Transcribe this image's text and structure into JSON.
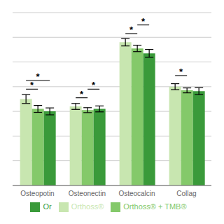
{
  "chart_data": {
    "type": "bar",
    "categories": [
      "Osteopotin",
      "Osteonectin",
      "Osteocalcin",
      "Collag"
    ],
    "series": [
      {
        "name": "Orthoss®",
        "color": "#c8e6b0",
        "values": [
          3.5,
          3.2,
          5.8,
          4.0
        ],
        "errors": [
          0.18,
          0.12,
          0.15,
          0.12
        ]
      },
      {
        "name": "Orthoss® + TMB®",
        "color": "#84c96a",
        "values": [
          3.1,
          3.05,
          5.55,
          3.85
        ],
        "errors": [
          0.14,
          0.1,
          0.13,
          0.1
        ]
      },
      {
        "name": "Or",
        "color": "#3a9a3a",
        "values": [
          3.0,
          3.1,
          5.35,
          3.82
        ],
        "errors": [
          0.14,
          0.12,
          0.16,
          0.14
        ]
      }
    ],
    "ylim": [
      0,
      7
    ],
    "yticks": [
      0,
      0.5,
      1,
      1.5,
      2,
      2.5,
      3,
      3.5,
      4,
      4.5,
      5,
      5.5,
      6,
      6.5,
      7
    ],
    "grid": true,
    "tick_labels": "x",
    "legend": "bottom",
    "annotations": [
      {
        "text": "*",
        "category": "Osteopotin",
        "from": "Orthoss®",
        "to": "Orthoss® + TMB®",
        "y": 3.9
      },
      {
        "text": "*",
        "category": "Osteopotin",
        "from": "Orthoss®",
        "to": "Or",
        "y": 4.25
      },
      {
        "text": "*",
        "category": "Osteonectin",
        "from": "Orthoss®",
        "to": "Orthoss® + TMB®",
        "y": 3.55
      },
      {
        "text": "*",
        "category": "Osteonectin",
        "from": "Orthoss® + TMB®",
        "to": "Or",
        "y": 3.9
      },
      {
        "text": "*",
        "category": "Osteocalcin",
        "from": "Orthoss®",
        "to": "Orthoss® + TMB®",
        "y": 6.15
      },
      {
        "text": "*",
        "category": "Osteocalcin",
        "from": "Orthoss® + TMB®",
        "to": "Or",
        "y": 6.5
      },
      {
        "text": "*",
        "category": "Collag",
        "from": "Orthoss®",
        "to": "Orthoss® + TMB®",
        "y": 4.45
      }
    ]
  }
}
